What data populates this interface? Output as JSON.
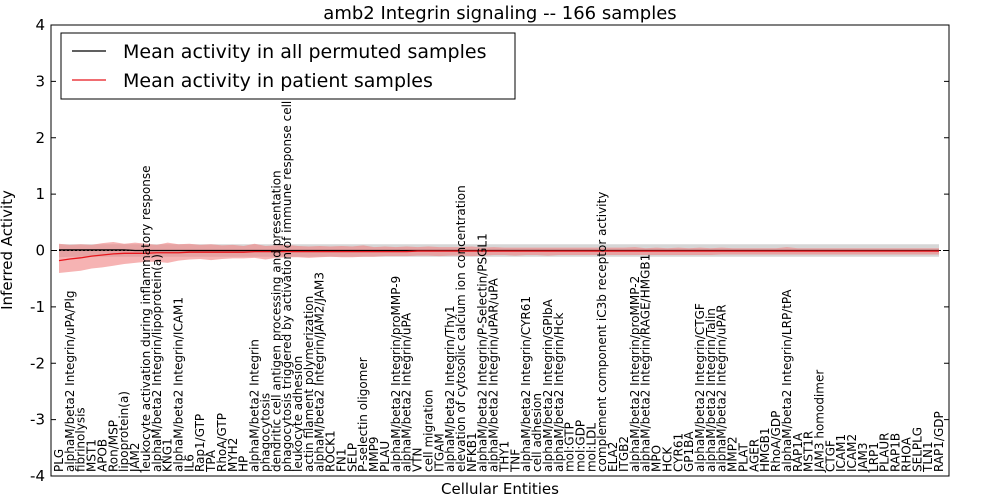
{
  "chart_data": {
    "type": "line",
    "title": "amb2 Integrin signaling -- 166 samples",
    "xlabel": "Cellular Entities",
    "ylabel": "Inferred Activity",
    "ylim": [
      -4,
      4
    ],
    "yticks": [
      "-4",
      "-3",
      "-2",
      "-1",
      "0",
      "1",
      "2",
      "3",
      "4"
    ],
    "reference_line": 0,
    "legend_position": "top-left",
    "colors": {
      "permuted": "#000000",
      "permuted_band": "#c8c8c8",
      "patient": "#e8161c",
      "patient_band": "#f08080"
    },
    "categories": [
      "PLG",
      "alphaM/beta2 Integrin/uPA/Plg",
      "fibrinolysis",
      "MST1",
      "APOB",
      "Ron/MSP",
      "lipoprotein(a)",
      "JAM2",
      "leukocyte activation during inflammatory response",
      "alphaM/beta2 Integrin/lipoprotein(a)",
      "KNG1",
      "alphaM/beta2 Integrin/ICAM1",
      "IL6",
      "Rap1/GTP",
      "TPA",
      "RhoA/GTP",
      "MYH2",
      "HP",
      "alphaM/beta2 Integrin",
      "phagocytosis",
      "dendritic cell antigen processing and presentation",
      "phagocytosis triggered by activation of immune response cell surface",
      "leukocyte adhesion",
      "actin filament polymerization",
      "alphaM/beta2 Integrin/JAM2/JAM3",
      "ROCK1",
      "FN1",
      "SELP",
      "P-selectin oligomer",
      "MMP9",
      "PLAU",
      "alphaM/beta2 Integrin/proMMP-9",
      "alphaM/beta2 Integrin/uPA",
      "VTN",
      "cell migration",
      "ITGAM",
      "alphaM/beta2 Integrin/Thy1",
      "elevation of cytosolic calcium ion concentration",
      "NFKB1",
      "alphaM/beta2 Integrin/P-Selectin/PSGL1",
      "alphaM/beta2 Integrin/uPAR/uPA",
      "THY1",
      "TNF",
      "alphaM/beta2 Integrin/CYR61",
      "cell adhesion",
      "alphaM/beta2 Integrin/GPIbA",
      "alphaM/beta2 Integrin/Hck",
      "mol:GTP",
      "mol:GDP",
      "mol:LDL",
      "complement component iC3b receptor activity",
      "ELA2",
      "ITGB2",
      "alphaM/beta2 Integrin/proMMP-2",
      "alphaM/beta2 Integrin/RAGE/HMGB1",
      "MPO",
      "HCK",
      "CYR61",
      "GP1BA",
      "alphaM/beta2 Integrin/CTGF",
      "alphaM/beta2 Integrin/Talin",
      "alphaM/beta2 Integrin/uPAR",
      "MMP2",
      "PLAT",
      "AGER",
      "HMGB1",
      "RhoA/GDP",
      "alphaM/beta2 Integrin/LRP/tPA",
      "RAP1A",
      "MST1R",
      "JAM3 homodimer",
      "CTGF",
      "ICAM1",
      "ICAM2",
      "JAM3",
      "LRP1",
      "PLAUR",
      "RAP1B",
      "RHOA",
      "SELPLG",
      "TLN1",
      "RAP1/GDP"
    ],
    "series": [
      {
        "name": "Mean activity in all permuted samples",
        "values": [
          0.01,
          0.01,
          0.01,
          0.01,
          0.01,
          0.01,
          0.01,
          0.0,
          0.0,
          0.0,
          0.0,
          0.0,
          0.0,
          0.0,
          0.0,
          0.0,
          0.0,
          0.0,
          0.0,
          0.0,
          0.0,
          0.0,
          0.0,
          0.0,
          0.0,
          0.0,
          0.0,
          0.0,
          0.0,
          0.0,
          0.0,
          0.0,
          0.0,
          0.0,
          0.0,
          0.0,
          0.0,
          0.0,
          0.0,
          0.0,
          0.0,
          0.0,
          0.0,
          0.0,
          0.0,
          0.0,
          0.0,
          0.0,
          0.0,
          0.0,
          0.0,
          0.0,
          0.0,
          0.0,
          0.0,
          0.0,
          0.0,
          0.0,
          0.0,
          0.0,
          0.0,
          0.0,
          0.0,
          0.0,
          0.0,
          0.0,
          0.0,
          0.0,
          0.0,
          0.0,
          0.0,
          0.0,
          0.0,
          0.0,
          0.0,
          0.0,
          0.0,
          0.0,
          0.0,
          0.0,
          0.0,
          0.0
        ],
        "lower": [
          -0.12,
          -0.11,
          -0.11,
          -0.11,
          -0.11,
          -0.11,
          -0.11,
          -0.11,
          -0.11,
          -0.11,
          -0.11,
          -0.11,
          -0.11,
          -0.11,
          -0.11,
          -0.11,
          -0.11,
          -0.11,
          -0.11,
          -0.11,
          -0.11,
          -0.11,
          -0.11,
          -0.11,
          -0.11,
          -0.11,
          -0.11,
          -0.11,
          -0.11,
          -0.11,
          -0.11,
          -0.11,
          -0.11,
          -0.11,
          -0.11,
          -0.11,
          -0.11,
          -0.11,
          -0.11,
          -0.11,
          -0.11,
          -0.11,
          -0.11,
          -0.11,
          -0.11,
          -0.11,
          -0.11,
          -0.11,
          -0.11,
          -0.11,
          -0.11,
          -0.11,
          -0.11,
          -0.11,
          -0.11,
          -0.11,
          -0.11,
          -0.11,
          -0.11,
          -0.11,
          -0.11,
          -0.11,
          -0.11,
          -0.11,
          -0.11,
          -0.11,
          -0.11,
          -0.11,
          -0.11,
          -0.11,
          -0.11,
          -0.11,
          -0.11,
          -0.11,
          -0.11,
          -0.11,
          -0.11,
          -0.11,
          -0.11,
          -0.11,
          -0.11,
          -0.11
        ],
        "upper": [
          0.11,
          0.11,
          0.11,
          0.11,
          0.11,
          0.11,
          0.11,
          0.11,
          0.11,
          0.11,
          0.11,
          0.11,
          0.11,
          0.11,
          0.11,
          0.11,
          0.11,
          0.11,
          0.11,
          0.11,
          0.11,
          0.11,
          0.11,
          0.11,
          0.11,
          0.11,
          0.11,
          0.11,
          0.11,
          0.11,
          0.11,
          0.11,
          0.11,
          0.11,
          0.11,
          0.11,
          0.11,
          0.11,
          0.11,
          0.11,
          0.11,
          0.11,
          0.11,
          0.11,
          0.11,
          0.11,
          0.11,
          0.11,
          0.11,
          0.11,
          0.11,
          0.11,
          0.11,
          0.11,
          0.11,
          0.11,
          0.11,
          0.11,
          0.11,
          0.11,
          0.11,
          0.11,
          0.11,
          0.11,
          0.11,
          0.11,
          0.11,
          0.11,
          0.11,
          0.11,
          0.11,
          0.11,
          0.11,
          0.11,
          0.11,
          0.11,
          0.11,
          0.11,
          0.11,
          0.11,
          0.11,
          0.11
        ]
      },
      {
        "name": "Mean activity in patient samples",
        "values": [
          -0.18,
          -0.15,
          -0.13,
          -0.1,
          -0.08,
          -0.06,
          -0.05,
          -0.05,
          -0.05,
          -0.04,
          -0.04,
          -0.04,
          -0.03,
          -0.03,
          -0.03,
          -0.03,
          -0.03,
          -0.03,
          -0.02,
          -0.02,
          -0.02,
          -0.02,
          -0.02,
          -0.02,
          -0.02,
          -0.02,
          -0.02,
          -0.02,
          -0.02,
          -0.02,
          -0.02,
          -0.02,
          -0.02,
          -0.01,
          -0.01,
          -0.01,
          -0.01,
          -0.01,
          -0.01,
          -0.01,
          -0.01,
          -0.01,
          -0.01,
          -0.01,
          -0.01,
          -0.01,
          -0.01,
          -0.01,
          -0.01,
          -0.01,
          -0.01,
          -0.01,
          -0.01,
          -0.01,
          -0.01,
          -0.01,
          -0.01,
          -0.01,
          -0.01,
          -0.01,
          -0.01,
          -0.01,
          -0.01,
          -0.01,
          -0.01,
          -0.01,
          -0.01,
          -0.01,
          -0.01,
          -0.01,
          -0.01,
          -0.01,
          -0.01,
          -0.01,
          -0.01,
          -0.01,
          -0.01,
          -0.01,
          -0.01,
          -0.01,
          -0.01,
          -0.01
        ],
        "lower": [
          -0.4,
          -0.38,
          -0.36,
          -0.32,
          -0.3,
          -0.27,
          -0.24,
          -0.22,
          -0.2,
          -0.2,
          -0.22,
          -0.18,
          -0.16,
          -0.15,
          -0.17,
          -0.15,
          -0.14,
          -0.14,
          -0.13,
          -0.16,
          -0.13,
          -0.12,
          -0.12,
          -0.13,
          -0.12,
          -0.11,
          -0.12,
          -0.12,
          -0.11,
          -0.11,
          -0.1,
          -0.1,
          -0.1,
          -0.09,
          -0.09,
          -0.1,
          -0.09,
          -0.09,
          -0.1,
          -0.09,
          -0.08,
          -0.08,
          -0.09,
          -0.08,
          -0.08,
          -0.09,
          -0.08,
          -0.08,
          -0.08,
          -0.08,
          -0.08,
          -0.08,
          -0.08,
          -0.08,
          -0.08,
          -0.08,
          -0.08,
          -0.08,
          -0.08,
          -0.08,
          -0.08,
          -0.07,
          -0.07,
          -0.07,
          -0.07,
          -0.07,
          -0.07,
          -0.07,
          -0.07,
          -0.07,
          -0.07,
          -0.07,
          -0.07,
          -0.07,
          -0.07,
          -0.07,
          -0.07,
          -0.07,
          -0.07,
          -0.07,
          -0.07,
          -0.07
        ],
        "upper": [
          0.12,
          0.1,
          0.11,
          0.1,
          0.13,
          0.15,
          0.12,
          0.14,
          0.12,
          0.1,
          0.14,
          0.11,
          0.12,
          0.1,
          0.11,
          0.09,
          0.1,
          0.08,
          0.12,
          0.08,
          0.09,
          0.1,
          0.08,
          0.07,
          0.08,
          0.07,
          0.08,
          0.07,
          0.09,
          0.06,
          0.07,
          0.06,
          0.07,
          0.06,
          0.07,
          0.06,
          0.06,
          0.06,
          0.07,
          0.05,
          0.06,
          0.05,
          0.05,
          0.05,
          0.05,
          0.05,
          0.05,
          0.05,
          0.05,
          0.05,
          0.05,
          0.05,
          0.05,
          0.06,
          0.04,
          0.05,
          0.04,
          0.05,
          0.04,
          0.05,
          0.04,
          0.05,
          0.04,
          0.04,
          0.04,
          0.04,
          0.04,
          0.06,
          0.04,
          0.04,
          0.04,
          0.04,
          0.04,
          0.04,
          0.04,
          0.04,
          0.04,
          0.04,
          0.04,
          0.04,
          0.04,
          0.04
        ]
      }
    ]
  }
}
